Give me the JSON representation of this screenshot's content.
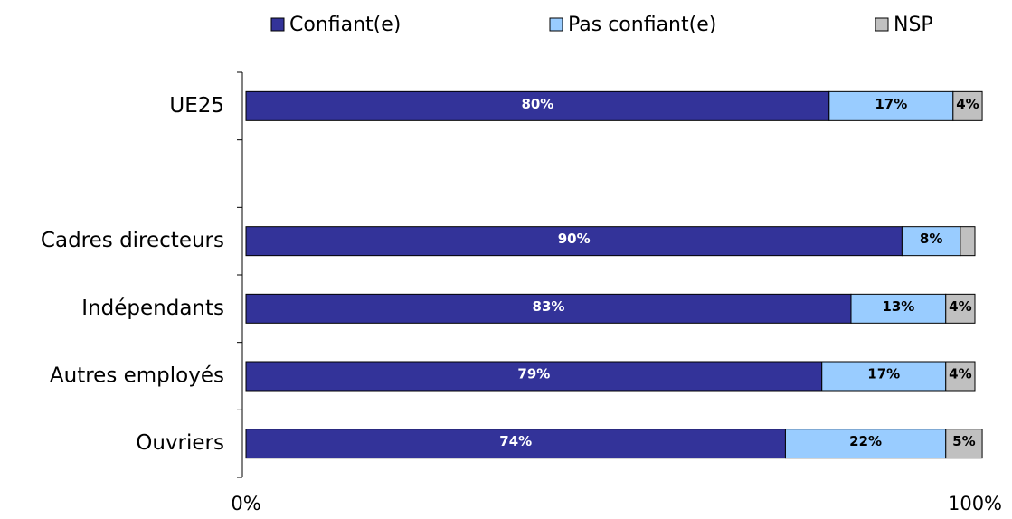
{
  "chart_data": {
    "type": "stacked_bar_horizontal",
    "categories": [
      "UE25",
      null,
      "Cadres directeurs",
      "Indépendants",
      "Autres employés",
      "Ouvriers"
    ],
    "series": [
      {
        "name": "Confiant(e)",
        "color": "#333399",
        "label_color": "#ffffff",
        "values": [
          80,
          null,
          90,
          83,
          79,
          74
        ],
        "value_labels": [
          "80%",
          null,
          "90%",
          "83%",
          "79%",
          "74%"
        ]
      },
      {
        "name": "Pas confiant(e)",
        "color": "#99ccff",
        "label_color": "#000000",
        "values": [
          17,
          null,
          8,
          13,
          17,
          22
        ],
        "value_labels": [
          "17%",
          null,
          "8%",
          "13%",
          "17%",
          "22%"
        ]
      },
      {
        "name": "NSP",
        "color": "#c0c0c0",
        "label_color": "#000000",
        "values": [
          4,
          null,
          2,
          4,
          4,
          5
        ],
        "value_labels": [
          "4%",
          null,
          null,
          "4%",
          "4%",
          "5%"
        ]
      }
    ],
    "xlim": [
      0,
      100
    ],
    "xticks": [
      {
        "value": 0,
        "label": "0%"
      },
      {
        "value": 100,
        "label": "100%"
      }
    ],
    "grid": false,
    "legend": "top"
  }
}
